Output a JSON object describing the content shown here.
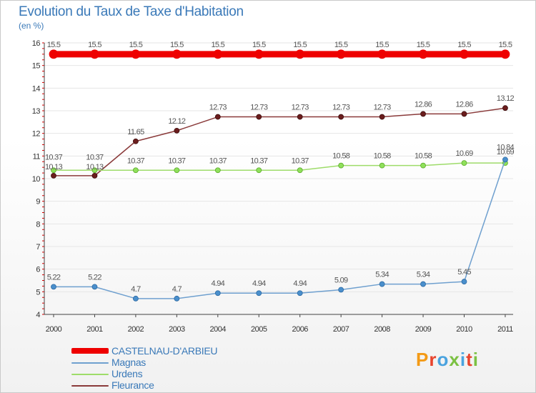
{
  "title": "Evolution du Taux de Taxe d'Habitation",
  "unit": "(en %)",
  "logo": {
    "text": "Proxiti",
    "colors": [
      "#f39a16",
      "#e8442d",
      "#4aa3df",
      "#7bc142",
      "#4aa3df",
      "#e8442d",
      "#7bc142"
    ]
  },
  "chart_data": {
    "type": "line",
    "title": "Evolution du Taux de Taxe d'Habitation",
    "ylabel": "(en %)",
    "xlabel": "",
    "ylim": [
      4,
      16
    ],
    "yticks": [
      4,
      5,
      6,
      7,
      8,
      9,
      10,
      11,
      12,
      13,
      14,
      15,
      16
    ],
    "categories": [
      "2000",
      "2001",
      "2002",
      "2003",
      "2004",
      "2005",
      "2006",
      "2007",
      "2008",
      "2009",
      "2010",
      "2011"
    ],
    "series": [
      {
        "name": "CASTELNAU-D'ARBIEU",
        "color": "#ee0000",
        "values": [
          15.5,
          15.5,
          15.5,
          15.5,
          15.5,
          15.5,
          15.5,
          15.5,
          15.5,
          15.5,
          15.5,
          15.5
        ],
        "labels": [
          "15.5",
          "15.5",
          "15.5",
          "15.5",
          "15.5",
          "15.5",
          "15.5",
          "15.5",
          "15.5",
          "15.5",
          "15.5",
          "15.5"
        ]
      },
      {
        "name": "Magnas",
        "color": "#6fa0cf",
        "values": [
          5.22,
          5.22,
          4.7,
          4.7,
          4.94,
          4.94,
          4.94,
          5.09,
          5.34,
          5.34,
          5.45,
          10.84
        ],
        "labels": [
          "5.22",
          "5.22",
          "4.7",
          "4.7",
          "4.94",
          "4.94",
          "4.94",
          "5.09",
          "5.34",
          "5.34",
          "5.45",
          "10.84"
        ]
      },
      {
        "name": "Urdens",
        "color": "#9edc6a",
        "values": [
          10.37,
          10.37,
          10.37,
          10.37,
          10.37,
          10.37,
          10.37,
          10.58,
          10.58,
          10.58,
          10.69,
          10.69
        ],
        "labels": [
          "10.37",
          "10.37",
          "10.37",
          "10.37",
          "10.37",
          "10.37",
          "10.37",
          "10.58",
          "10.58",
          "10.58",
          "10.69",
          "10.69"
        ]
      },
      {
        "name": "Fleurance",
        "color": "#8a3a3a",
        "values": [
          10.13,
          10.13,
          11.65,
          12.12,
          12.73,
          12.73,
          12.73,
          12.73,
          12.73,
          12.86,
          12.86,
          13.12
        ],
        "labels": [
          "10.13",
          "10.13",
          "11.65",
          "12.12",
          "12.73",
          "12.73",
          "12.73",
          "12.73",
          "12.73",
          "12.86",
          "12.86",
          "13.12"
        ]
      }
    ],
    "legend": {
      "position": "bottom-left"
    }
  }
}
